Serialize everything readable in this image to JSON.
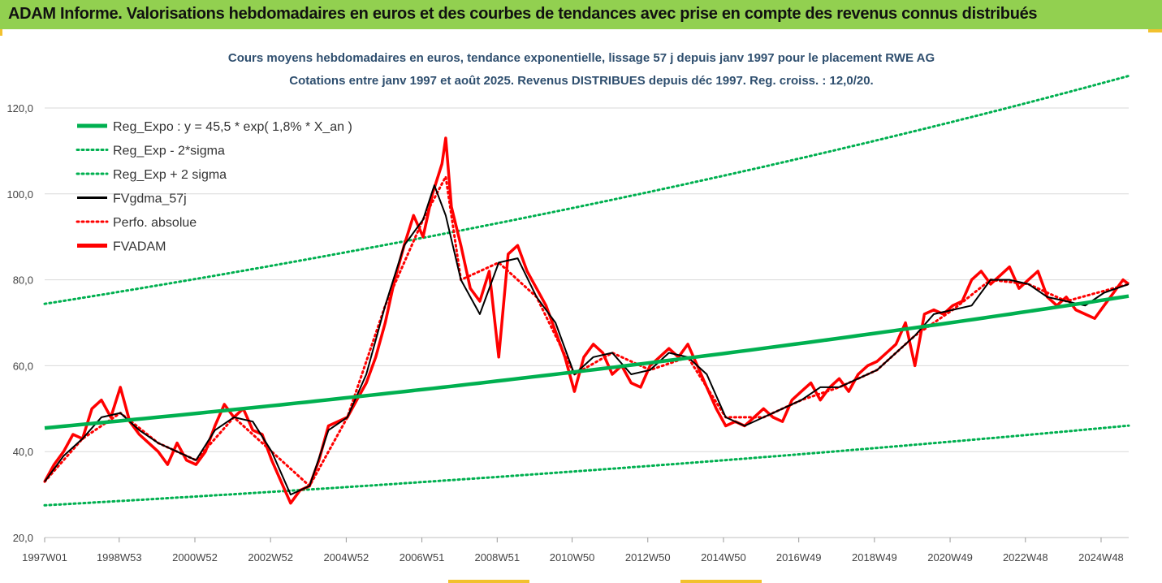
{
  "banner": {
    "title": "ADAM Informe. Valorisations hebdomadaires en euros et des courbes de tendances avec prise en compte des revenus connus distribués"
  },
  "colors": {
    "banner_bg": "#92d050",
    "trend": "#00b050",
    "trend_band": "#00b050",
    "smoothed": "#000000",
    "perf_abs": "#ff0000",
    "fvadam": "#ff0000",
    "grid": "#d9d9d9",
    "title_text": "#2f4f6f"
  },
  "chart_data": {
    "type": "line",
    "title": "Cours moyens hebdomadaires en euros, tendance exponentielle, lissage 57 j depuis janv 1997 pour le placement RWE AG",
    "subtitle": "Cotations entre janv 1997 et août 2025.  Revenus DISTRIBUES depuis déc 1997. Reg. croiss. : 12,0/20.",
    "xlabel": "",
    "ylabel": "",
    "x_unit": "year",
    "xlim": [
      1997.0,
      2025.65
    ],
    "ylim": [
      20,
      130
    ],
    "y_ticks": [
      20,
      40,
      60,
      80,
      100,
      120
    ],
    "y_tick_labels": [
      "20,0",
      "40,0",
      "60,0",
      "80,0",
      "100,0",
      "120,0"
    ],
    "x_ticks": [
      1997.0,
      1998.97,
      2000.97,
      2002.97,
      2004.97,
      2006.97,
      2008.96,
      2010.94,
      2012.94,
      2014.94,
      2016.93,
      2018.93,
      2020.93,
      2022.92,
      2024.92
    ],
    "x_tick_labels": [
      "1997W01",
      "1998W53",
      "2000W52",
      "2002W52",
      "2004W52",
      "2006W51",
      "2008W51",
      "2010W50",
      "2012W50",
      "2014W50",
      "2016W49",
      "2018W49",
      "2020W49",
      "2022W48",
      "2024W48"
    ],
    "grid": "horizontal",
    "legend_position": "top-left",
    "regression": {
      "a": 45.5,
      "rate": 0.018,
      "x0": 1997.0
    },
    "series": [
      {
        "name": "Reg_Expo : y = 45,5 * exp( 1,8% *  X_an )",
        "style": "solid-thick",
        "color": "#00b050",
        "x": [
          1997.0,
          2001.0,
          2005.0,
          2009.0,
          2013.0,
          2017.0,
          2021.0,
          2025.65
        ],
        "values": [
          45.5,
          48.9,
          52.5,
          56.3,
          60.5,
          65.0,
          69.8,
          76.0
        ]
      },
      {
        "name": "Reg_Exp - 2*sigma",
        "style": "dotted",
        "color": "#00b050",
        "x": [
          1997.0,
          2001.0,
          2005.0,
          2009.0,
          2013.0,
          2017.0,
          2021.0,
          2025.65
        ],
        "values": [
          27.5,
          29.6,
          31.8,
          34.2,
          36.8,
          39.6,
          42.6,
          46.4
        ]
      },
      {
        "name": "Reg_Exp + 2 sigma",
        "style": "dotted",
        "color": "#00b050",
        "x": [
          1997.0,
          2001.0,
          2005.0,
          2009.0,
          2013.0,
          2017.0,
          2021.0,
          2025.65
        ],
        "values": [
          74.4,
          80.0,
          86.0,
          92.4,
          99.3,
          106.7,
          114.6,
          126.6
        ]
      },
      {
        "name": "FVgdma_57j",
        "style": "solid",
        "color": "#000000",
        "x": [
          1997.0,
          1997.5,
          1998.0,
          1998.5,
          1999.0,
          1999.5,
          2000.0,
          2000.5,
          2001.0,
          2001.5,
          2002.0,
          2002.5,
          2003.0,
          2003.5,
          2004.0,
          2004.5,
          2005.0,
          2005.5,
          2006.0,
          2006.5,
          2007.0,
          2007.3,
          2007.6,
          2008.0,
          2008.5,
          2009.0,
          2009.5,
          2010.0,
          2010.5,
          2011.0,
          2011.5,
          2012.0,
          2012.5,
          2013.0,
          2013.5,
          2014.0,
          2014.5,
          2015.0,
          2015.5,
          2016.0,
          2016.5,
          2017.0,
          2017.5,
          2018.0,
          2018.5,
          2019.0,
          2019.5,
          2020.0,
          2020.5,
          2021.0,
          2021.5,
          2022.0,
          2022.5,
          2023.0,
          2023.5,
          2024.0,
          2024.5,
          2025.0,
          2025.65
        ],
        "values": [
          33,
          39,
          43,
          48,
          49,
          45,
          42,
          40,
          38,
          45,
          48,
          47,
          40,
          30,
          32,
          45,
          48,
          58,
          74,
          88,
          94,
          102,
          95,
          80,
          72,
          84,
          85,
          76,
          70,
          58,
          62,
          63,
          58,
          59,
          63,
          62,
          58,
          48,
          46,
          48,
          50,
          52,
          55,
          55,
          57,
          59,
          63,
          67,
          72,
          73,
          74,
          80,
          80,
          79,
          76,
          75,
          74,
          77,
          79
        ]
      },
      {
        "name": "Perfo. absolue",
        "style": "dotted",
        "color": "#ff0000",
        "x": [
          1997.0,
          1998.0,
          1999.0,
          2000.0,
          2001.0,
          2002.0,
          2003.0,
          2004.0,
          2005.0,
          2006.0,
          2007.0,
          2007.6,
          2008.0,
          2009.0,
          2010.0,
          2011.0,
          2012.0,
          2013.0,
          2014.0,
          2015.0,
          2016.0,
          2017.0,
          2018.0,
          2019.0,
          2020.0,
          2021.0,
          2022.0,
          2023.0,
          2024.0,
          2025.65
        ],
        "values": [
          33,
          43,
          49,
          42,
          38,
          48,
          40,
          32,
          48,
          74,
          94,
          104,
          80,
          84,
          76,
          58,
          63,
          59,
          62,
          48,
          48,
          52,
          55,
          59,
          67,
          73,
          80,
          79,
          75,
          79
        ]
      },
      {
        "name": "FVADAM",
        "style": "solid-thick",
        "color": "#ff0000",
        "x": [
          1997.0,
          1997.25,
          1997.5,
          1997.75,
          1998.0,
          1998.25,
          1998.5,
          1998.75,
          1999.0,
          1999.25,
          1999.5,
          1999.75,
          2000.0,
          2000.25,
          2000.5,
          2000.75,
          2001.0,
          2001.25,
          2001.5,
          2001.75,
          2002.0,
          2002.25,
          2002.5,
          2002.75,
          2003.0,
          2003.25,
          2003.5,
          2003.75,
          2004.0,
          2004.25,
          2004.5,
          2004.75,
          2005.0,
          2005.25,
          2005.5,
          2005.75,
          2006.0,
          2006.25,
          2006.5,
          2006.75,
          2007.0,
          2007.25,
          2007.5,
          2007.6,
          2007.75,
          2008.0,
          2008.25,
          2008.5,
          2008.75,
          2009.0,
          2009.25,
          2009.5,
          2009.75,
          2010.0,
          2010.25,
          2010.5,
          2010.75,
          2011.0,
          2011.25,
          2011.5,
          2011.75,
          2012.0,
          2012.25,
          2012.5,
          2012.75,
          2013.0,
          2013.25,
          2013.5,
          2013.75,
          2014.0,
          2014.25,
          2014.5,
          2014.75,
          2015.0,
          2015.25,
          2015.5,
          2015.75,
          2016.0,
          2016.25,
          2016.5,
          2016.75,
          2017.0,
          2017.25,
          2017.5,
          2017.75,
          2018.0,
          2018.25,
          2018.5,
          2018.75,
          2019.0,
          2019.25,
          2019.5,
          2019.75,
          2020.0,
          2020.25,
          2020.5,
          2020.75,
          2021.0,
          2021.25,
          2021.5,
          2021.75,
          2022.0,
          2022.25,
          2022.5,
          2022.75,
          2023.0,
          2023.25,
          2023.5,
          2023.75,
          2024.0,
          2024.25,
          2024.5,
          2024.75,
          2025.0,
          2025.25,
          2025.5,
          2025.65
        ],
        "values": [
          33,
          37,
          40,
          44,
          43,
          50,
          52,
          48,
          55,
          47,
          44,
          42,
          40,
          37,
          42,
          38,
          37,
          40,
          46,
          51,
          48,
          50,
          45,
          44,
          38,
          33,
          28,
          31,
          32,
          38,
          46,
          47,
          48,
          52,
          56,
          62,
          70,
          80,
          88,
          95,
          90,
          100,
          107,
          113,
          97,
          88,
          78,
          75,
          82,
          62,
          86,
          88,
          82,
          78,
          74,
          68,
          62,
          54,
          62,
          65,
          63,
          58,
          60,
          56,
          55,
          60,
          62,
          64,
          62,
          65,
          60,
          55,
          50,
          46,
          47,
          46,
          48,
          50,
          48,
          47,
          52,
          54,
          56,
          52,
          55,
          57,
          54,
          58,
          60,
          61,
          63,
          65,
          70,
          60,
          72,
          73,
          72,
          74,
          75,
          80,
          82,
          79,
          81,
          83,
          78,
          80,
          82,
          76,
          74,
          76,
          73,
          72,
          71,
          74,
          77,
          80,
          79
        ]
      }
    ]
  }
}
